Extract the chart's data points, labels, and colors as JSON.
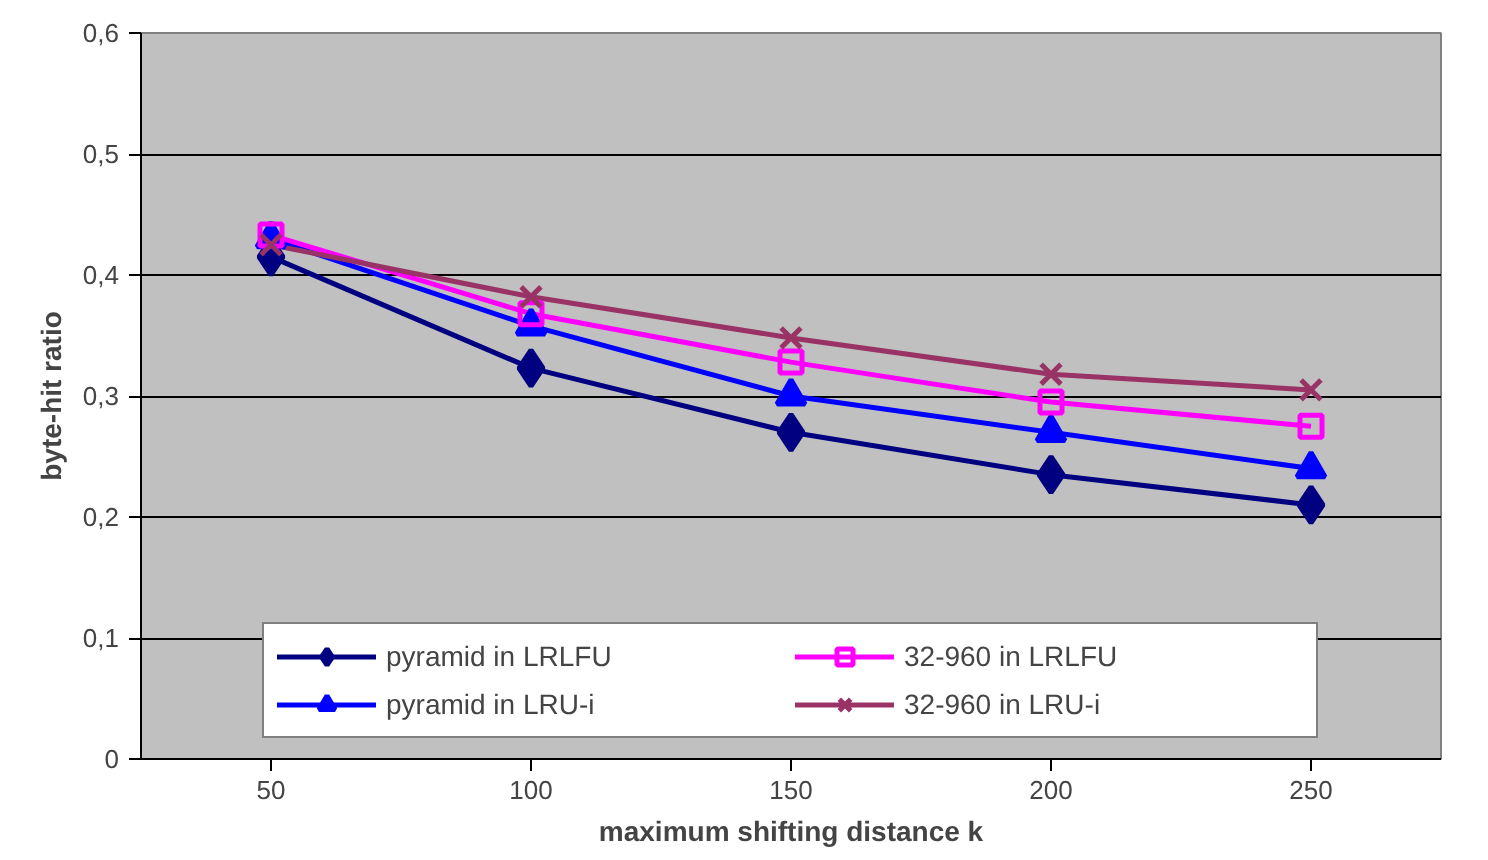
{
  "chart_data": {
    "type": "line",
    "xlabel": "maximum shifting distance k",
    "ylabel": "byte-hit ratio",
    "categories": [
      "50",
      "100",
      "150",
      "200",
      "250"
    ],
    "series": [
      {
        "name": "pyramid in LRLFU",
        "color": "#000080",
        "marker": "diamond",
        "values": [
          0.415,
          0.323,
          0.27,
          0.235,
          0.21
        ]
      },
      {
        "name": "pyramid in LRU-i",
        "color": "#0000ff",
        "marker": "triangle",
        "values": [
          0.43,
          0.358,
          0.3,
          0.27,
          0.24
        ]
      },
      {
        "name": "32-960 in LRLFU",
        "color": "#ff00ff",
        "marker": "square",
        "values": [
          0.433,
          0.368,
          0.328,
          0.295,
          0.275
        ]
      },
      {
        "name": "32-960 in LRU-i",
        "color": "#993366",
        "marker": "cross",
        "values": [
          0.425,
          0.382,
          0.348,
          0.318,
          0.305
        ]
      }
    ],
    "ylim": [
      0,
      0.6
    ],
    "yticks": [
      {
        "value": 0,
        "label": "0"
      },
      {
        "value": 0.1,
        "label": "0,1"
      },
      {
        "value": 0.2,
        "label": "0,2"
      },
      {
        "value": 0.3,
        "label": "0,3"
      },
      {
        "value": 0.4,
        "label": "0,4"
      },
      {
        "value": 0.5,
        "label": "0,5"
      },
      {
        "value": 0.6,
        "label": "0,6"
      }
    ],
    "grid": "y",
    "legend": "bottom",
    "line_style": "solid"
  }
}
